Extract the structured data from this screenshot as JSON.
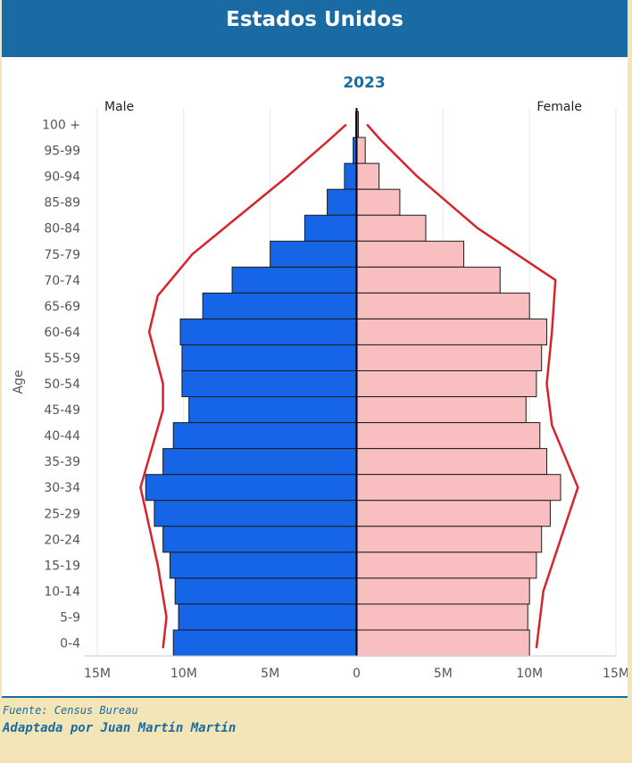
{
  "header": {
    "title": "Estados Unidos"
  },
  "footer": {
    "source": "Fuente: Census Bureau",
    "credit": "Adaptada por Juan Martín Martín"
  },
  "colors": {
    "header_bg": "#1a6aa3",
    "male": "#1565e6",
    "female": "#f9bfc0",
    "envelope": "#d8232a"
  },
  "chart_data": {
    "type": "bar",
    "title": "2023",
    "ylabel": "Age",
    "xlim": [
      -15,
      15
    ],
    "x_unit": "M",
    "x_ticks": [
      -15,
      -10,
      -5,
      0,
      5,
      10,
      15
    ],
    "x_tick_labels": [
      "15M",
      "10M",
      "5M",
      "0",
      "5M",
      "10M",
      "15M"
    ],
    "grid": true,
    "categories": [
      "100 +",
      "95-99",
      "90-94",
      "85-89",
      "80-84",
      "75-79",
      "70-74",
      "65-69",
      "60-64",
      "55-59",
      "50-54",
      "45-49",
      "40-44",
      "35-39",
      "30-34",
      "25-29",
      "20-24",
      "15-19",
      "10-14",
      "5-9",
      "0-4"
    ],
    "series": [
      {
        "name": "Male",
        "values": [
          0.05,
          0.2,
          0.7,
          1.7,
          3.0,
          5.0,
          7.2,
          8.9,
          10.2,
          10.1,
          10.1,
          9.7,
          10.6,
          11.2,
          12.2,
          11.7,
          11.2,
          10.8,
          10.5,
          10.3,
          10.6
        ]
      },
      {
        "name": "Female",
        "values": [
          0.1,
          0.5,
          1.3,
          2.5,
          4.0,
          6.2,
          8.3,
          10.0,
          11.0,
          10.7,
          10.4,
          9.8,
          10.6,
          11.0,
          11.8,
          11.2,
          10.7,
          10.4,
          10.0,
          9.9,
          10.0
        ]
      }
    ],
    "envelope": {
      "left": [
        [
          -0.6,
          100
        ],
        [
          -1.6,
          97
        ],
        [
          -4.0,
          90
        ],
        [
          -9.5,
          75
        ],
        [
          -11.5,
          67
        ],
        [
          -12.0,
          60
        ],
        [
          -11.2,
          50
        ],
        [
          -11.2,
          45
        ],
        [
          -12.5,
          30
        ],
        [
          -11.5,
          15
        ],
        [
          -11.0,
          5
        ],
        [
          -11.2,
          -1
        ]
      ],
      "right": [
        [
          0.6,
          100
        ],
        [
          1.4,
          97
        ],
        [
          3.5,
          90
        ],
        [
          7.0,
          80
        ],
        [
          11.5,
          70
        ],
        [
          11.3,
          60
        ],
        [
          11.0,
          50
        ],
        [
          11.3,
          42
        ],
        [
          12.8,
          30
        ],
        [
          11.8,
          20
        ],
        [
          10.8,
          10
        ],
        [
          10.4,
          -1
        ]
      ]
    }
  }
}
